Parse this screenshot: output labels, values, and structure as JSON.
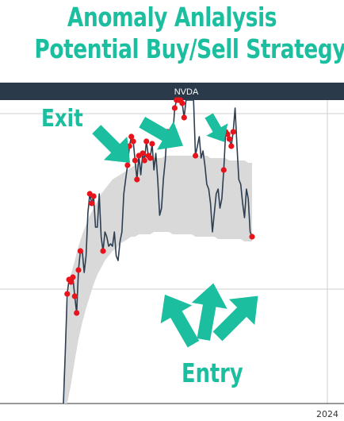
{
  "title": {
    "line1": "Anomaly Anlalysis",
    "line2": "Potential Buy/Sell Strategy"
  },
  "colors": {
    "accent": "#1bbf9f",
    "header_bar": "#2a3a4a",
    "price_line": "#2c3e50",
    "band_fill": "#d9d9d9",
    "anomaly_marker": "#e8141c"
  },
  "annotations": {
    "exit_label": "Exit",
    "entry_label": "Entry"
  },
  "chart_data": {
    "type": "line",
    "title": "NVDA",
    "x_tick_labels": [
      "2024"
    ],
    "grid": true,
    "series": [
      {
        "values": [
          -10,
          22,
          46,
          52,
          51,
          53,
          45,
          38,
          56,
          64,
          64,
          55,
          62,
          80,
          88,
          84,
          87,
          74,
          74,
          88,
          70,
          64,
          72,
          70,
          66,
          67,
          66,
          72,
          62,
          60,
          68,
          72,
          88,
          94,
          100,
          108,
          112,
          110,
          102,
          94,
          104,
          96,
          105,
          102,
          110,
          104,
          103,
          109,
          98,
          105,
          94,
          79,
          82,
          94,
          102,
          115,
          114,
          108,
          112,
          124,
          135,
          140,
          148,
          126,
          120,
          130,
          138,
          132,
          136,
          128,
          104,
          108,
          112,
          103,
          106,
          100,
          92,
          90,
          84,
          72,
          80,
          88,
          90,
          82,
          86,
          98,
          114,
          113,
          111,
          108,
          114,
          124,
          108,
          94,
          92,
          84,
          78,
          90,
          86,
          72,
          70
        ]
      }
    ],
    "anomaly_band": {
      "upper": [
        10,
        40,
        54,
        60,
        66,
        71,
        75,
        79,
        82,
        85,
        88,
        90,
        92,
        94,
        95,
        96,
        97,
        98,
        99,
        100,
        101,
        101,
        102,
        102,
        103,
        103,
        103,
        104,
        104,
        104,
        104,
        104,
        104,
        104,
        104,
        104,
        104,
        104,
        104,
        103,
        103,
        103,
        103,
        103,
        102,
        102,
        102,
        102,
        102,
        101,
        101
      ],
      "lower": [
        -20,
        -5,
        8,
        18,
        27,
        34,
        40,
        45,
        50,
        54,
        57,
        60,
        62,
        64,
        65,
        67,
        68,
        69,
        70,
        70,
        71,
        71,
        71,
        71,
        72,
        72,
        72,
        72,
        72,
        71,
        71,
        71,
        71,
        71,
        71,
        70,
        70,
        70,
        70,
        70,
        70,
        69,
        69,
        69,
        69,
        69,
        69,
        69,
        68,
        68,
        68
      ]
    },
    "anomaly_indices": [
      2,
      3,
      4,
      5,
      6,
      7,
      8,
      9,
      14,
      15,
      16,
      21,
      34,
      35,
      36,
      37,
      38,
      39,
      40,
      42,
      43,
      44,
      45,
      46,
      47,
      56,
      58,
      59,
      60,
      61,
      62,
      63,
      64,
      70,
      85,
      86,
      87,
      88,
      89,
      90,
      100
    ]
  }
}
